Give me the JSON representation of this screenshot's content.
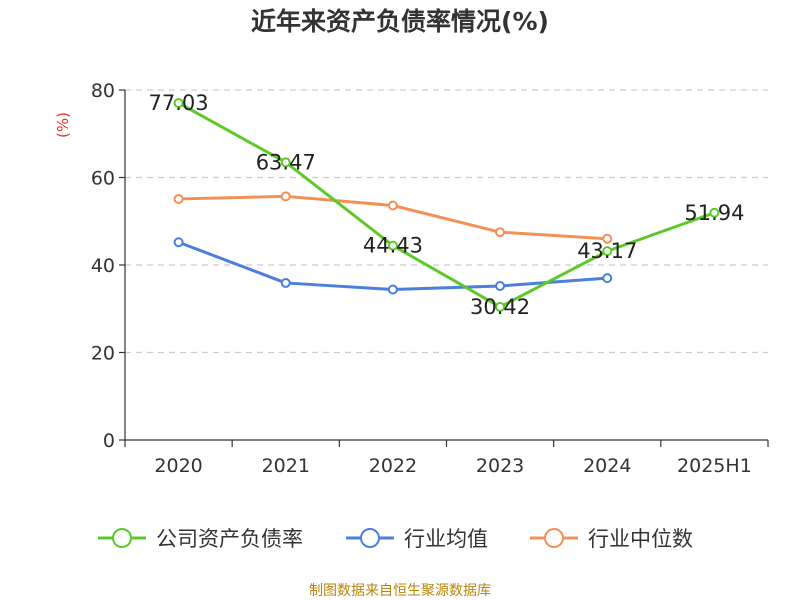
{
  "chart_data": {
    "type": "line",
    "title": "近年来资产负债率情况(%)",
    "ylabel": "(%)",
    "xlabel": "",
    "ylim": [
      0,
      80
    ],
    "yticks": [
      0,
      20,
      40,
      60,
      80
    ],
    "grid": true,
    "legend_position": "bottom",
    "categories": [
      "2020",
      "2021",
      "2022",
      "2023",
      "2024",
      "2025H1"
    ],
    "series": [
      {
        "name": "公司资产负债率",
        "color": "#5dc928",
        "values": [
          77.03,
          63.47,
          44.43,
          30.42,
          43.17,
          51.94
        ],
        "labels": [
          "77.03",
          "63.47",
          "44.43",
          "30.42",
          "43.17",
          "51.94"
        ],
        "show_labels": true
      },
      {
        "name": "行业均值",
        "color": "#4a7fdb",
        "values": [
          45.2,
          35.9,
          34.4,
          35.2,
          37.0,
          null
        ],
        "show_labels": false
      },
      {
        "name": "行业中位数",
        "color": "#f39055",
        "values": [
          55.1,
          55.7,
          53.6,
          47.5,
          46.0,
          null
        ],
        "show_labels": false
      }
    ]
  },
  "source": "制图数据来自恒生聚源数据库"
}
